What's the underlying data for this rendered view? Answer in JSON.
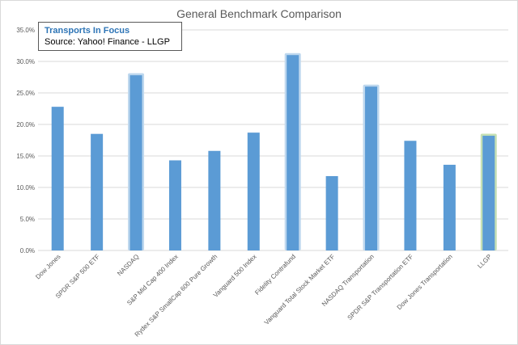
{
  "chart_data": {
    "type": "bar",
    "title": "General Benchmark Comparison",
    "annotation": {
      "title": "Transports In Focus",
      "source": "Source: Yahoo! Finance - LLGP"
    },
    "categories": [
      "Dow Jones",
      "SPDR S&P 500 ETF",
      "NASDAQ",
      "S&P Mid Cap 400 Index",
      "Rydex S&P SmallCap 600 Pure Growth",
      "Vanguard 500 Index",
      "Fidelity Contrafund",
      "Vanguard Total Stock Market ETF",
      "NASDAQ Transportation",
      "SPDR S&P Transportation ETF",
      "Dow Jones Transportation",
      "LLGP"
    ],
    "values": [
      22.8,
      18.5,
      27.8,
      14.3,
      15.8,
      18.7,
      31.0,
      11.8,
      26.0,
      17.4,
      13.6,
      18.2
    ],
    "glow": [
      "none",
      "none",
      "blue",
      "none",
      "none",
      "none",
      "blue",
      "none",
      "blue",
      "none",
      "none",
      "green"
    ],
    "ylim": [
      0,
      35
    ],
    "yticks": [
      "0.0%",
      "5.0%",
      "10.0%",
      "15.0%",
      "20.0%",
      "25.0%",
      "30.0%",
      "35.0%"
    ],
    "grid": true,
    "colors": {
      "bar": "#5b9bd5",
      "glow_blue": "#bdd7ee",
      "glow_green": "#c5e0b4",
      "grid": "#d9d9d9"
    }
  }
}
